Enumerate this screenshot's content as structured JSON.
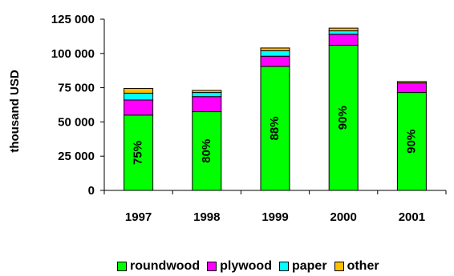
{
  "chart_data": {
    "type": "bar",
    "stacked": true,
    "categories": [
      "1997",
      "1998",
      "1999",
      "2000",
      "2001"
    ],
    "series": [
      {
        "name": "roundwood",
        "color": "#00ff00",
        "values": [
          55000,
          57500,
          90500,
          106000,
          71500
        ]
      },
      {
        "name": "plywood",
        "color": "#ff00ff",
        "values": [
          11000,
          11000,
          7500,
          8000,
          7000
        ]
      },
      {
        "name": "paper",
        "color": "#00ffff",
        "values": [
          5000,
          3000,
          4000,
          2500,
          0
        ]
      },
      {
        "name": "other",
        "color": "#ffc000",
        "values": [
          3500,
          1500,
          2000,
          2000,
          1000
        ]
      }
    ],
    "bar_labels": [
      "75%",
      "80%",
      "88%",
      "90%",
      "90%"
    ],
    "ylabel": "thousand USD",
    "xlabel": "",
    "ylim": [
      0,
      125000
    ],
    "yticks": [
      0,
      25000,
      50000,
      75000,
      100000,
      125000
    ],
    "ytick_labels": [
      "0",
      "25 000",
      "50 000",
      "75 000",
      "100 000",
      "125 000"
    ],
    "grid": false,
    "legend_position": "bottom"
  }
}
